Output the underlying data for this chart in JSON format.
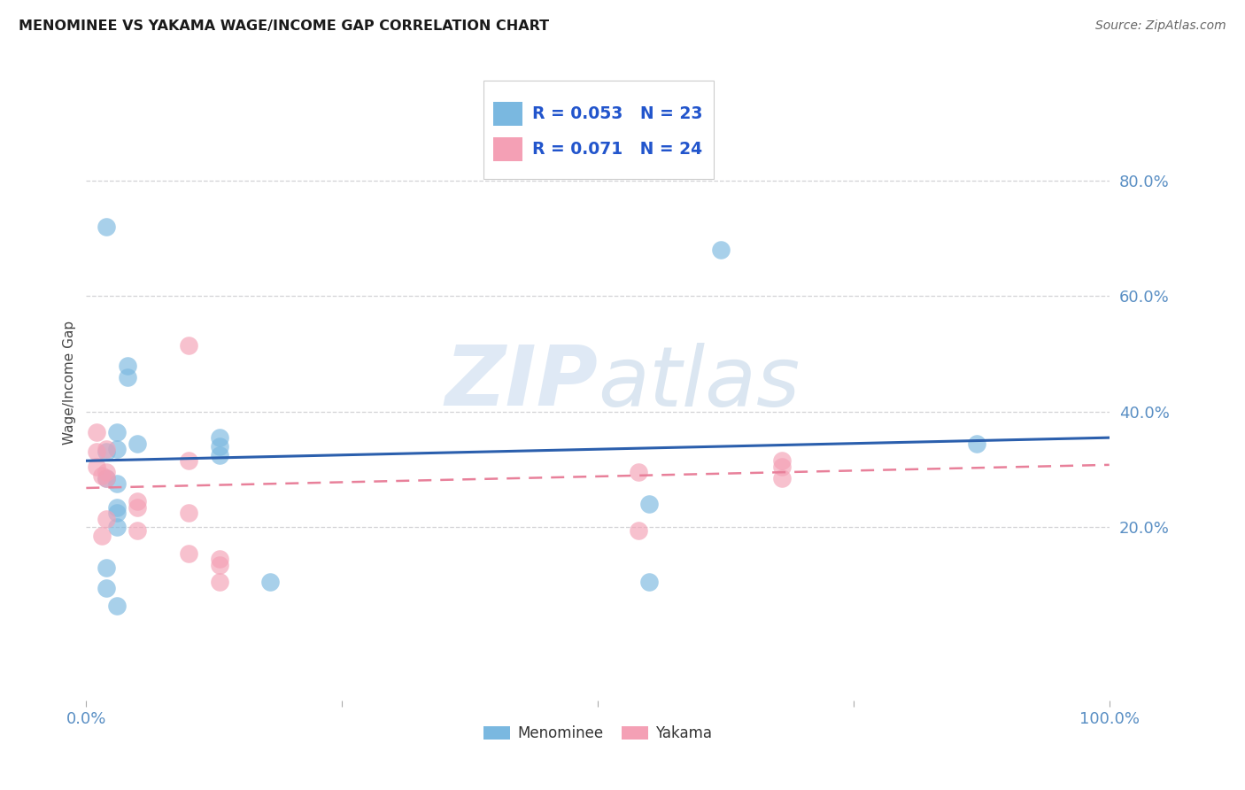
{
  "title": "MENOMINEE VS YAKAMA WAGE/INCOME GAP CORRELATION CHART",
  "source": "Source: ZipAtlas.com",
  "ylabel": "Wage/Income Gap",
  "xlim": [
    0.0,
    1.0
  ],
  "ylim": [
    -0.1,
    1.0
  ],
  "yticks": [
    0.2,
    0.4,
    0.6,
    0.8
  ],
  "ytick_labels": [
    "20.0%",
    "40.0%",
    "60.0%",
    "80.0%"
  ],
  "xticks": [
    0.0,
    0.25,
    0.5,
    0.75,
    1.0
  ],
  "xtick_labels": [
    "0.0%",
    "",
    "",
    "",
    "100.0%"
  ],
  "menominee_color": "#7ab8e0",
  "yakama_color": "#f4a0b5",
  "menominee_line_color": "#2b5fad",
  "yakama_line_color": "#e8809a",
  "legend_R_menominee": "R = 0.053",
  "legend_N_menominee": "N = 23",
  "legend_R_yakama": "R = 0.071",
  "legend_N_yakama": "N = 24",
  "watermark_zip": "ZIP",
  "watermark_atlas": "atlas",
  "menominee_x": [
    0.02,
    0.62,
    0.04,
    0.04,
    0.03,
    0.05,
    0.03,
    0.02,
    0.02,
    0.03,
    0.03,
    0.13,
    0.13,
    0.13,
    0.55,
    0.55,
    0.03,
    0.03,
    0.03,
    0.02,
    0.02,
    0.87,
    0.18
  ],
  "menominee_y": [
    0.72,
    0.68,
    0.48,
    0.46,
    0.365,
    0.345,
    0.335,
    0.33,
    0.285,
    0.275,
    0.225,
    0.355,
    0.34,
    0.325,
    0.24,
    0.105,
    0.235,
    0.2,
    0.065,
    0.13,
    0.095,
    0.345,
    0.105
  ],
  "yakama_x": [
    0.01,
    0.01,
    0.01,
    0.015,
    0.015,
    0.02,
    0.02,
    0.02,
    0.02,
    0.05,
    0.05,
    0.05,
    0.1,
    0.1,
    0.1,
    0.1,
    0.13,
    0.13,
    0.13,
    0.54,
    0.54,
    0.68,
    0.68,
    0.68
  ],
  "yakama_y": [
    0.365,
    0.33,
    0.305,
    0.29,
    0.185,
    0.335,
    0.295,
    0.285,
    0.215,
    0.245,
    0.235,
    0.195,
    0.515,
    0.315,
    0.225,
    0.155,
    0.145,
    0.135,
    0.105,
    0.295,
    0.195,
    0.315,
    0.305,
    0.285
  ],
  "menominee_line_x0": 0.0,
  "menominee_line_x1": 1.0,
  "menominee_line_y0": 0.315,
  "menominee_line_y1": 0.355,
  "yakama_line_x0": 0.0,
  "yakama_line_x1": 1.0,
  "yakama_line_y0": 0.268,
  "yakama_line_y1": 0.308
}
